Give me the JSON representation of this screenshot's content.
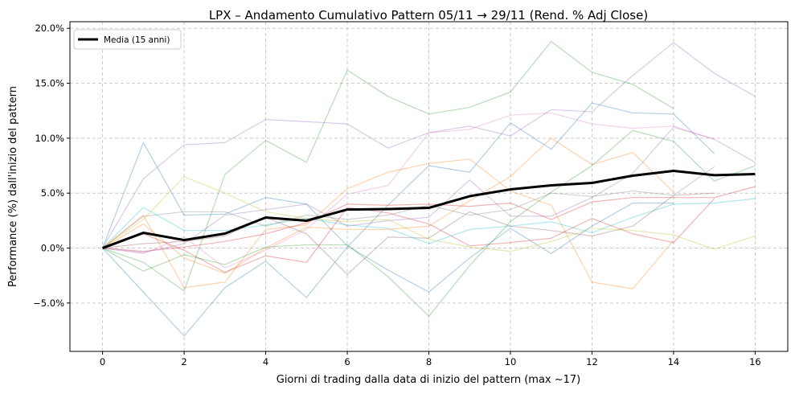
{
  "chart_data": {
    "type": "line",
    "title": "LPX – Andamento Cumulativo Pattern 05/11 → 29/11 (Rend. % Adj Close)",
    "xlabel": "Giorni di trading dalla data di inizio del pattern (max ~17)",
    "ylabel": "Performance (%) dall'inizio del pattern",
    "xlim": [
      -0.8,
      16.8
    ],
    "ylim": [
      -9.4,
      20.6
    ],
    "x_ticks": [
      0,
      2,
      4,
      6,
      8,
      10,
      12,
      14,
      16
    ],
    "x_tick_labels": [
      "0",
      "2",
      "4",
      "6",
      "8",
      "10",
      "12",
      "14",
      "16"
    ],
    "y_ticks": [
      -5,
      0,
      5,
      10,
      15,
      20
    ],
    "y_tick_labels": [
      "−5.0%",
      "0.0%",
      "5.0%",
      "10.0%",
      "15.0%",
      "20.0%"
    ],
    "grid": true,
    "legend": {
      "placement": "top-left",
      "entries": [
        "Media (15 anni)"
      ]
    },
    "mean_series": {
      "name": "Media (15 anni)",
      "color": "#000000",
      "x": [
        0,
        1,
        2,
        3,
        4,
        5,
        6,
        7,
        8,
        9,
        10,
        11,
        12,
        13,
        14,
        15,
        16
      ],
      "values": [
        0,
        1.39,
        0.73,
        1.32,
        2.78,
        2.49,
        3.51,
        3.55,
        3.66,
        4.72,
        5.34,
        5.71,
        5.93,
        6.59,
        7.03,
        6.63,
        6.73
      ]
    },
    "series": [
      {
        "color": "#1f77b4",
        "values": [
          0,
          9.6,
          3.0,
          3.1,
          4.6,
          4.0,
          0.2,
          -2.0,
          -4.0,
          -0.9,
          1.8,
          -0.5,
          2.0,
          4.1,
          4.1
        ]
      },
      {
        "color": "#1f77b4",
        "values": [
          0,
          -4.0,
          -8.0,
          -3.6,
          -1.2,
          -4.5,
          0.1,
          3.9,
          7.5,
          6.9,
          11.4,
          9.0,
          13.2,
          12.3,
          12.2,
          8.6
        ]
      },
      {
        "color": "#ff7f0e",
        "values": [
          0,
          3.0,
          -3.6,
          -3.1,
          1.7,
          2.1,
          5.4,
          6.9,
          7.7,
          8.1,
          5.2,
          3.9,
          -3.1,
          -3.7,
          0.7
        ]
      },
      {
        "color": "#ff7f0e",
        "values": [
          0,
          2.2,
          -0.9,
          -2.3,
          0.0,
          1.9,
          1.7,
          1.7,
          2.0,
          4.3,
          6.5,
          10.0,
          7.6,
          8.7,
          5.1
        ]
      },
      {
        "color": "#2ca02c",
        "values": [
          0,
          -1.3,
          -3.9,
          6.7,
          9.8,
          7.8,
          16.2,
          13.8,
          12.2,
          12.8,
          14.2,
          18.8,
          16.0,
          14.9,
          12.7
        ]
      },
      {
        "color": "#2ca02c",
        "values": [
          0,
          -2.1,
          -0.6,
          -1.5,
          0.1,
          0.3,
          0.3,
          -2.6,
          -6.2,
          -1.6,
          2.4,
          5.1,
          7.5,
          10.7,
          9.7,
          6.1,
          7.5
        ]
      },
      {
        "color": "#d62728",
        "values": [
          0,
          -0.3,
          0.1,
          0.6,
          1.3,
          2.3,
          4.0,
          3.9,
          4.0,
          3.8,
          4.1,
          2.6,
          4.2,
          4.6,
          4.6,
          4.6,
          5.6
        ]
      },
      {
        "color": "#d62728",
        "values": [
          0,
          1.3,
          -0.2,
          -2.2,
          -0.7,
          -1.3,
          3.7,
          3.2,
          2.2,
          0.2,
          0.5,
          0.9,
          2.7,
          1.3,
          0.5,
          4.5
        ]
      },
      {
        "color": "#9467bd",
        "values": [
          0,
          6.3,
          9.4,
          9.6,
          11.7,
          11.5,
          11.3,
          9.1,
          10.5,
          11.1,
          10.2,
          12.6,
          12.4,
          15.7,
          18.7,
          15.9,
          13.8
        ]
      },
      {
        "color": "#9467bd",
        "values": [
          0,
          -0.4,
          0.4,
          3.0,
          3.5,
          4.0,
          2.0,
          2.5,
          2.8,
          6.2,
          2.9,
          2.9,
          4.6,
          6.8,
          11.0,
          9.9,
          7.8
        ]
      },
      {
        "color": "#8c564b",
        "values": [
          0,
          0.4,
          0.6,
          1.1,
          2.8,
          1.3,
          -2.4,
          1.0,
          0.9,
          3.3,
          2.0,
          1.6,
          1.1,
          2.0,
          4.8,
          5.0
        ]
      },
      {
        "color": "#e377c2",
        "values": [
          0,
          -0.5,
          1.0,
          -1.8,
          -0.2,
          1.7,
          4.9,
          5.7,
          10.5,
          10.8,
          12.1,
          12.3,
          11.3,
          10.9,
          11.1,
          9.9
        ]
      },
      {
        "color": "#7f7f7f",
        "values": [
          0,
          2.9,
          3.3,
          3.3,
          2.0,
          3.0,
          2.6,
          3.0,
          3.9,
          3.0,
          3.5,
          5.0,
          4.7,
          5.2,
          4.8,
          7.4
        ]
      },
      {
        "color": "#bcbd22",
        "values": [
          0,
          2.6,
          6.5,
          5.0,
          3.3,
          2.7,
          2.4,
          2.6,
          0.8,
          0.1,
          -0.3,
          0.6,
          1.8,
          1.6,
          1.2,
          -0.1,
          1.1
        ]
      },
      {
        "color": "#17becf",
        "values": [
          0,
          3.7,
          1.6,
          1.6,
          2.1,
          2.7,
          2.1,
          1.8,
          0.4,
          1.7,
          2.0,
          2.4,
          1.4,
          2.8,
          4.0,
          4.1,
          4.5
        ]
      }
    ]
  }
}
